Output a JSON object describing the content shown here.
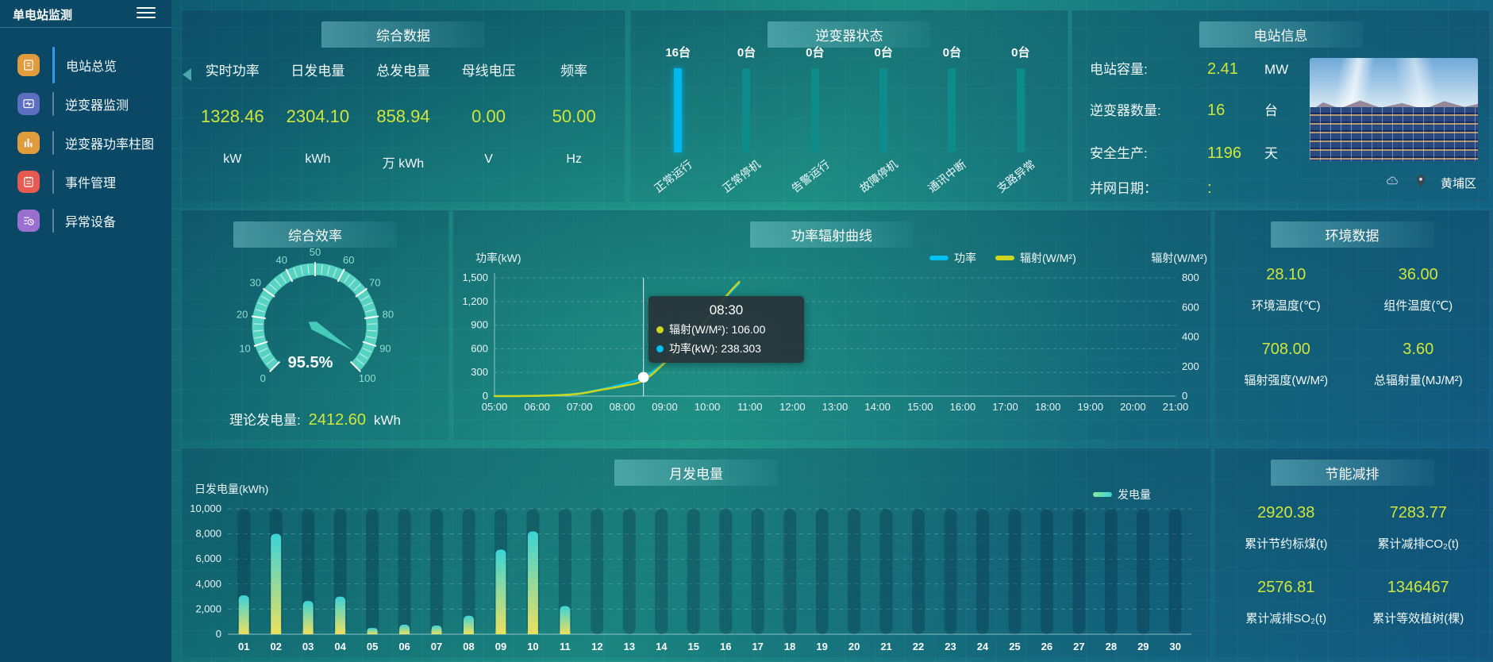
{
  "app": {
    "title": "单电站监测"
  },
  "colors": {
    "accent_value": "#d0e63a",
    "power_series": "#00c0f0",
    "radiation_series": "#cdd61a",
    "gauge": "#57d3c2",
    "bar_top": "#3ad3d8",
    "bar_bottom": "#ece05e",
    "inverter_active_bar": "#00b7ee",
    "inverter_idle_bar": "#0e8b8b"
  },
  "sidebar": {
    "items": [
      {
        "id": "station-overview",
        "label": "电站总览",
        "icon": "overview-doc-icon",
        "icon_color": "#e09b3d",
        "active": true
      },
      {
        "id": "inverter-monitor",
        "label": "逆变器监测",
        "icon": "inverter-monitor-icon",
        "icon_color": "#5d6fc0",
        "active": false
      },
      {
        "id": "inverter-power-bars",
        "label": "逆变器功率柱图",
        "icon": "power-bar-chart-icon",
        "icon_color": "#e09b3d",
        "active": false
      },
      {
        "id": "event-management",
        "label": "事件管理",
        "icon": "event-note-icon",
        "icon_color": "#e85a50",
        "active": false
      },
      {
        "id": "abnormal-devices",
        "label": "异常设备",
        "icon": "abnormal-device-icon",
        "icon_color": "#9b6fd0",
        "active": false
      }
    ]
  },
  "panels": {
    "summary": {
      "title": "综合数据",
      "metrics": [
        {
          "label": "实时功率",
          "value": "1328.46",
          "unit": "kW"
        },
        {
          "label": "日发电量",
          "value": "2304.10",
          "unit": "kWh"
        },
        {
          "label": "总发电量",
          "value": "858.94",
          "unit": "万 kWh"
        },
        {
          "label": "母线电压",
          "value": "0.00",
          "unit": "V"
        },
        {
          "label": "频率",
          "value": "50.00",
          "unit": "Hz"
        }
      ]
    },
    "inverter_status": {
      "title": "逆变器状态",
      "items": [
        {
          "count": "16台",
          "label": "正常运行",
          "bar_color": "#00b7ee"
        },
        {
          "count": "0台",
          "label": "正常停机",
          "bar_color": "#0e8b8b"
        },
        {
          "count": "0台",
          "label": "告警运行",
          "bar_color": "#0e8b8b"
        },
        {
          "count": "0台",
          "label": "故障停机",
          "bar_color": "#0e8b8b"
        },
        {
          "count": "0台",
          "label": "通讯中断",
          "bar_color": "#0e8b8b"
        },
        {
          "count": "0台",
          "label": "支路异常",
          "bar_color": "#0e8b8b"
        }
      ]
    },
    "station_info": {
      "title": "电站信息",
      "rows": [
        {
          "label": "电站容量:",
          "value": "2.41",
          "unit": "MW"
        },
        {
          "label": "逆变器数量:",
          "value": "16",
          "unit": "台"
        },
        {
          "label": "安全生产:",
          "value": "1196",
          "unit": "天"
        },
        {
          "label": "并网日期：",
          "value": ":",
          "unit": ""
        }
      ],
      "location": "黄埔区"
    },
    "efficiency": {
      "theory_label": "理论发电量:",
      "theory_value": "2412.60",
      "theory_unit": "kWh"
    },
    "environment": {
      "title": "环境数据",
      "metrics": [
        {
          "value": "28.10",
          "label": "环境温度(℃)"
        },
        {
          "value": "36.00",
          "label": "组件温度(℃)"
        },
        {
          "value": "708.00",
          "label": "辐射强度(W/M²)"
        },
        {
          "value": "3.60",
          "label": "总辐射量(MJ/M²)"
        }
      ]
    },
    "energy_saving": {
      "title": "节能减排",
      "metrics": [
        {
          "value": "2920.38",
          "label": "累计节约标煤(t)"
        },
        {
          "value": "7283.77",
          "label": "累计减排CO₂(t)"
        },
        {
          "value": "2576.81",
          "label": "累计减排SO₂(t)"
        },
        {
          "value": "1346467",
          "label": "累计等效植树(棵)"
        }
      ]
    }
  },
  "chart_data": [
    {
      "id": "efficiency_gauge",
      "type": "gauge",
      "title": "综合效率",
      "min": 0,
      "max": 100,
      "tick_step": 10,
      "value": 95.5,
      "value_label": "95.5%"
    },
    {
      "id": "power_radiation",
      "type": "line",
      "title": "功率辐射曲线",
      "xlabels": [
        "05:00",
        "06:00",
        "07:00",
        "08:00",
        "09:00",
        "10:00",
        "11:00",
        "12:00",
        "13:00",
        "14:00",
        "15:00",
        "16:00",
        "17:00",
        "18:00",
        "19:00",
        "20:00",
        "21:00"
      ],
      "x_range_hours": [
        5,
        21
      ],
      "left_axis": {
        "title": "功率(kW)",
        "ticks": [
          "0",
          "300",
          "600",
          "900",
          "1,200",
          "1,500"
        ],
        "max": 1500
      },
      "right_axis": {
        "title": "辐射(W/M²)",
        "ticks": [
          "0",
          "200",
          "400",
          "600",
          "800"
        ],
        "max": 800
      },
      "grid": true,
      "legend_position": "top",
      "series": [
        {
          "name": "功率",
          "color": "#00c0f0",
          "axis": "left",
          "points": [
            [
              5,
              0
            ],
            [
              5.5,
              1
            ],
            [
              6,
              4
            ],
            [
              6.5,
              12
            ],
            [
              7,
              35
            ],
            [
              7.5,
              85
            ],
            [
              8,
              150
            ],
            [
              8.5,
              238.303
            ],
            [
              9,
              430
            ],
            [
              9.5,
              660
            ],
            [
              10,
              960
            ],
            [
              10.5,
              1290
            ],
            [
              10.75,
              1430
            ]
          ]
        },
        {
          "name": "辐射(W/M²)",
          "color": "#cdd61a",
          "axis": "right",
          "points": [
            [
              5,
              0
            ],
            [
              5.5,
              0
            ],
            [
              6,
              2
            ],
            [
              6.5,
              6
            ],
            [
              7,
              16
            ],
            [
              7.5,
              42
            ],
            [
              8,
              68
            ],
            [
              8.5,
              106
            ],
            [
              9,
              225
            ],
            [
              9.5,
              365
            ],
            [
              10,
              520
            ],
            [
              10.5,
              695
            ],
            [
              10.75,
              772
            ]
          ]
        }
      ],
      "tooltip": {
        "time": "08:30",
        "x": 8.5,
        "rows": [
          {
            "color": "#cdd61a",
            "text": "辐射(W/M²): 106.00"
          },
          {
            "color": "#00c0f0",
            "text": "功率(kW): 238.303"
          }
        ]
      }
    },
    {
      "id": "monthly_generation",
      "type": "bar",
      "title": "月发电量",
      "ylabel": "日发电量(kWh)",
      "yticks": [
        "0",
        "2,000",
        "4,000",
        "6,000",
        "8,000",
        "10,000"
      ],
      "ylim": [
        0,
        10000
      ],
      "legend": "发电量",
      "categories": [
        "01",
        "02",
        "03",
        "04",
        "05",
        "06",
        "07",
        "08",
        "09",
        "10",
        "11",
        "12",
        "13",
        "14",
        "15",
        "16",
        "17",
        "18",
        "19",
        "20",
        "21",
        "22",
        "23",
        "24",
        "25",
        "26",
        "27",
        "28",
        "29",
        "30"
      ],
      "values": [
        3100,
        8000,
        2650,
        3000,
        500,
        770,
        700,
        1480,
        6750,
        8200,
        2250,
        0,
        0,
        0,
        0,
        0,
        0,
        0,
        0,
        0,
        0,
        0,
        0,
        0,
        0,
        0,
        0,
        0,
        0,
        0
      ]
    }
  ]
}
